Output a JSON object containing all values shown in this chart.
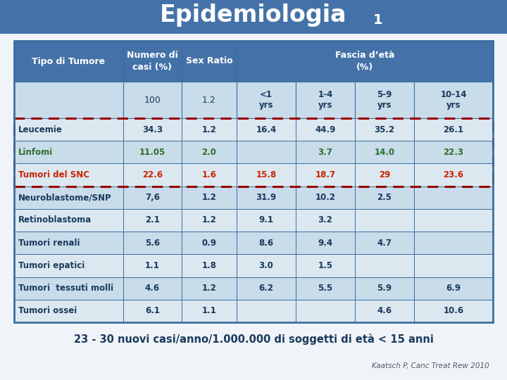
{
  "title": "Epidemiologia",
  "title_subscript": "1",
  "bg_color": "#f0f4f8",
  "header_bg": "#4472a8",
  "row_bg_light": "#c8dcea",
  "row_bg_mid": "#dbe8f0",
  "subheader_bg": "#c8dcea",
  "table_border_color": "#3b6fa0",
  "dashed_border_color": "#990000",
  "subheaders": [
    "",
    "100",
    "1.2",
    "<1\nyrs",
    "1-4\nyrs",
    "5-9\nyrs",
    "10-14\nyrs"
  ],
  "rows": [
    {
      "label": "Leucemie",
      "values": [
        "34.3",
        "1.2",
        "16.4",
        "44.9",
        "35.2",
        "26.1"
      ],
      "text_color": "#1a3a5c",
      "bold": true,
      "bg": "mid"
    },
    {
      "label": "Linfomi",
      "values": [
        "11.05",
        "2.0",
        "",
        "3.7",
        "14.0",
        "22.3"
      ],
      "text_color": "#2d6e2d",
      "bold": true,
      "bg": "light"
    },
    {
      "label": "Tumori del SNC",
      "values": [
        "22.6",
        "1.6",
        "15.8",
        "18.7",
        "29",
        "23.6"
      ],
      "text_color": "#cc2200",
      "bold": true,
      "bg": "mid"
    },
    {
      "label": "Neuroblastome/SNP",
      "values": [
        "7,6",
        "1.2",
        "31.9",
        "10.2",
        "2.5",
        ""
      ],
      "text_color": "#1a3a5c",
      "bold": true,
      "bg": "light"
    },
    {
      "label": "Retinoblastoma",
      "values": [
        "2.1",
        "1.2",
        "9.1",
        "3.2",
        "",
        ""
      ],
      "text_color": "#1a3a5c",
      "bold": true,
      "bg": "mid"
    },
    {
      "label": "Tumori renali",
      "values": [
        "5.6",
        "0.9",
        "8.6",
        "9.4",
        "4.7",
        ""
      ],
      "text_color": "#1a3a5c",
      "bold": true,
      "bg": "light"
    },
    {
      "label": "Tumori epatici",
      "values": [
        "1.1",
        "1.8",
        "3.0",
        "1.5",
        "",
        ""
      ],
      "text_color": "#1a3a5c",
      "bold": true,
      "bg": "mid"
    },
    {
      "label": "Tumori  tessuti molli",
      "values": [
        "4.6",
        "1.2",
        "6.2",
        "5.5",
        "5.9",
        "6.9"
      ],
      "text_color": "#1a3a5c",
      "bold": true,
      "bg": "light"
    },
    {
      "label": "Tumori ossei",
      "values": [
        "6.1",
        "1.1",
        "",
        "",
        "4.6",
        "10.6"
      ],
      "text_color": "#1a3a5c",
      "bold": true,
      "bg": "mid"
    }
  ],
  "footer_text": "23 - 30 nuovi casi/anno/1.000.000 di soggetti di età < 15 anni",
  "source_text": "Kaatsch P, Canc Treat Rew 2010"
}
